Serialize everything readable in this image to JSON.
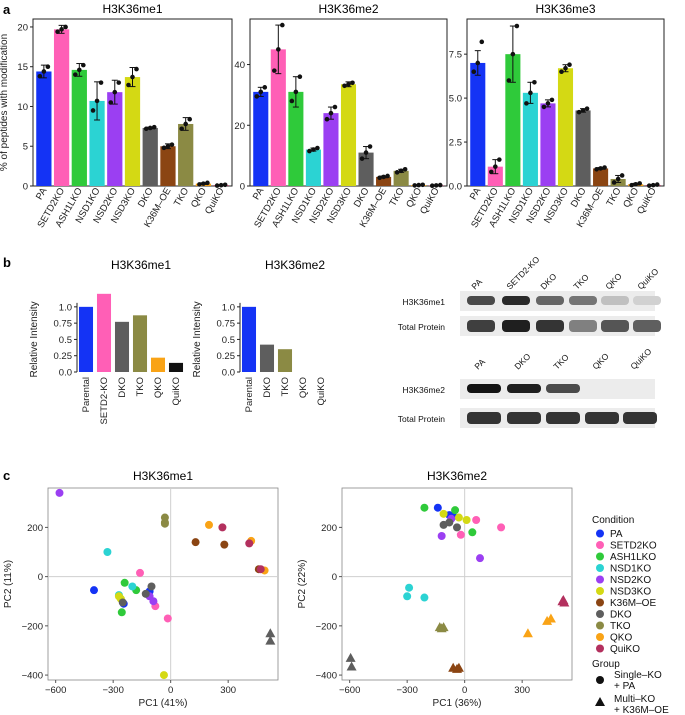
{
  "panel_labels": [
    "a",
    "b",
    "c"
  ],
  "chart_data": [
    {
      "id": "a1",
      "type": "bar",
      "title": "H3K36me1",
      "ylabel": "% of peptides with modification",
      "ylim": [
        0,
        21
      ],
      "yticks": [
        0,
        5,
        10,
        15,
        20
      ],
      "categories": [
        "PA",
        "SETD2KO",
        "ASH1LKO",
        "NSD1KO",
        "NSD2KO",
        "NSD3KO",
        "DKO",
        "K36M–OE",
        "TKO",
        "QKO",
        "QuiKO"
      ],
      "values": [
        14.4,
        19.7,
        14.6,
        10.7,
        11.8,
        13.7,
        7.3,
        5.0,
        7.8,
        0.3,
        0.1
      ],
      "errors": [
        0.8,
        0.5,
        0.8,
        2.4,
        1.5,
        1.2,
        0.1,
        0.3,
        0.8,
        0.1,
        0.05
      ],
      "points": [
        [
          13.8,
          14.4,
          15.0
        ],
        [
          19.4,
          19.7,
          20.0
        ],
        [
          14.0,
          14.6,
          15.2
        ],
        [
          9.5,
          10.7,
          13.0
        ],
        [
          10.5,
          11.8,
          13.0
        ],
        [
          12.7,
          13.7,
          14.7
        ],
        [
          7.2,
          7.3,
          7.4
        ],
        [
          4.8,
          5.0,
          5.2
        ],
        [
          7.2,
          7.8,
          8.4
        ],
        [
          0.2,
          0.3,
          0.4
        ],
        [
          0.05,
          0.1,
          0.15
        ]
      ]
    },
    {
      "id": "a2",
      "type": "bar",
      "title": "H3K36me2",
      "ylabel": "",
      "ylim": [
        0,
        55
      ],
      "yticks": [
        0,
        20,
        40
      ],
      "categories": [
        "PA",
        "SETD2KO",
        "ASH1LKO",
        "NSD1KO",
        "NSD2KO",
        "NSD3KO",
        "DKO",
        "K36M–OE",
        "TKO",
        "QKO",
        "QuiKO"
      ],
      "values": [
        31,
        45,
        31,
        12,
        24,
        33.5,
        11,
        3,
        5,
        0.3,
        0.2
      ],
      "errors": [
        1.5,
        8,
        5,
        0.5,
        2,
        0.8,
        2,
        0.3,
        0.5,
        0.1,
        0.1
      ],
      "points": [
        [
          29.5,
          31,
          32.5
        ],
        [
          38,
          45,
          53
        ],
        [
          28,
          31,
          36
        ],
        [
          11.5,
          12,
          12.5
        ],
        [
          22,
          24,
          26
        ],
        [
          33,
          33.5,
          34
        ],
        [
          9,
          11,
          13
        ],
        [
          2.7,
          3,
          3.3
        ],
        [
          4.5,
          5,
          5.5
        ],
        [
          0.2,
          0.3,
          0.4
        ],
        [
          0.1,
          0.2,
          0.3
        ]
      ]
    },
    {
      "id": "a3",
      "type": "bar",
      "title": "H3K36me3",
      "ylabel": "",
      "ylim": [
        0,
        9.5
      ],
      "yticks": [
        0.0,
        2.5,
        5.0,
        7.5
      ],
      "ytick_labels": [
        "0.0",
        "2.5",
        "5.0",
        "7.5"
      ],
      "categories": [
        "PA",
        "SETD2KO",
        "ASH1LKO",
        "NSD1KO",
        "NSD2KO",
        "NSD3KO",
        "DKO",
        "K36M–OE",
        "TKO",
        "QKO",
        "QuiKO"
      ],
      "values": [
        7.0,
        1.1,
        7.5,
        5.3,
        4.7,
        6.7,
        4.3,
        1.0,
        0.4,
        0.1,
        0.05
      ],
      "errors": [
        0.7,
        0.4,
        1.6,
        0.6,
        0.2,
        0.2,
        0.1,
        0.05,
        0.2,
        0.05,
        0.03
      ],
      "points": [
        [
          6.5,
          7.0,
          8.2
        ],
        [
          0.8,
          1.1,
          1.5
        ],
        [
          6.0,
          7.5,
          9.1
        ],
        [
          4.7,
          5.3,
          5.9
        ],
        [
          4.5,
          4.7,
          4.9
        ],
        [
          6.5,
          6.7,
          6.9
        ],
        [
          4.2,
          4.3,
          4.4
        ],
        [
          0.95,
          1.0,
          1.05
        ],
        [
          0.2,
          0.4,
          0.6
        ],
        [
          0.05,
          0.1,
          0.15
        ],
        [
          0.02,
          0.05,
          0.08
        ]
      ]
    },
    {
      "id": "b1",
      "type": "bar",
      "title": "H3K36me1",
      "ylabel": "Relative Intensity",
      "ylim": [
        0,
        1.32
      ],
      "yticks": [
        0.0,
        0.25,
        0.5,
        0.75,
        1.0
      ],
      "ytick_labels": [
        "0.0",
        "0.25",
        "0.5",
        "0.75",
        "1.0"
      ],
      "categories": [
        "Parental",
        "SETD2-KO",
        "DKO",
        "TKO",
        "QKO",
        "QuiKO"
      ],
      "values": [
        1.0,
        1.2,
        0.77,
        0.87,
        0.22,
        0.14
      ]
    },
    {
      "id": "b2",
      "type": "bar",
      "title": "H3K36me2",
      "ylabel": "Relative Intensity",
      "ylim": [
        0,
        1.32
      ],
      "yticks": [
        0.0,
        0.25,
        0.5,
        0.75,
        1.0
      ],
      "ytick_labels": [
        "0.0",
        "0.25",
        "0.5",
        "0.75",
        "1.0"
      ],
      "categories": [
        "Parental",
        "DKO",
        "TKO",
        "QKO",
        "QuiKO"
      ],
      "values": [
        1.0,
        0.42,
        0.35,
        0.0,
        0.0
      ]
    },
    {
      "id": "c1",
      "type": "scatter",
      "title": "H3K36me1",
      "xlabel": "PC1 (41%)",
      "ylabel": "PC2 (11%)",
      "xlim": [
        -640,
        560
      ],
      "ylim": [
        -420,
        360
      ],
      "xticks": [
        -600,
        -300,
        0,
        300
      ],
      "yticks": [
        -400,
        -200,
        0,
        200
      ],
      "points": [
        {
          "c": "PA",
          "x": -400,
          "y": -55
        },
        {
          "c": "PA",
          "x": -245,
          "y": -110
        },
        {
          "c": "PA",
          "x": -110,
          "y": -60
        },
        {
          "c": "SETD2KO",
          "x": -160,
          "y": 15
        },
        {
          "c": "SETD2KO",
          "x": -15,
          "y": -170
        },
        {
          "c": "SETD2KO",
          "x": -80,
          "y": -120
        },
        {
          "c": "ASH1LKO",
          "x": -255,
          "y": -145
        },
        {
          "c": "ASH1LKO",
          "x": -240,
          "y": -25
        },
        {
          "c": "ASH1LKO",
          "x": -180,
          "y": -55
        },
        {
          "c": "NSD1KO",
          "x": -330,
          "y": 100
        },
        {
          "c": "NSD1KO",
          "x": -270,
          "y": -75
        },
        {
          "c": "NSD1KO",
          "x": -200,
          "y": -40
        },
        {
          "c": "NSD2KO",
          "x": -580,
          "y": 340
        },
        {
          "c": "NSD2KO",
          "x": -110,
          "y": -80
        },
        {
          "c": "NSD2KO",
          "x": -90,
          "y": -100
        },
        {
          "c": "NSD3KO",
          "x": -270,
          "y": -80
        },
        {
          "c": "NSD3KO",
          "x": -260,
          "y": -90
        },
        {
          "c": "NSD3KO",
          "x": -35,
          "y": -400
        },
        {
          "c": "DKO",
          "x": -250,
          "y": -105
        },
        {
          "c": "DKO",
          "x": -130,
          "y": -70
        },
        {
          "c": "DKO",
          "x": -100,
          "y": -40
        },
        {
          "c": "K36M–OE",
          "x": 130,
          "y": 140
        },
        {
          "c": "K36M–OE",
          "x": 280,
          "y": 130
        },
        {
          "c": "K36M–OE",
          "x": 460,
          "y": 30
        },
        {
          "c": "TKO",
          "x": -30,
          "y": 240
        },
        {
          "c": "TKO",
          "x": -30,
          "y": 220
        },
        {
          "c": "TKO",
          "x": -30,
          "y": 215
        },
        {
          "c": "QKO",
          "x": 200,
          "y": 210
        },
        {
          "c": "QKO",
          "x": 420,
          "y": 145
        },
        {
          "c": "QKO",
          "x": 490,
          "y": 25
        },
        {
          "c": "QuiKO",
          "x": 270,
          "y": 200
        },
        {
          "c": "QuiKO",
          "x": 410,
          "y": 135
        },
        {
          "c": "QuiKO",
          "x": 470,
          "y": 30
        },
        {
          "c": "DKO",
          "x": 520,
          "y": -230,
          "s": "tri"
        },
        {
          "c": "DKO",
          "x": 520,
          "y": -260,
          "s": "tri"
        }
      ]
    },
    {
      "id": "c2",
      "type": "scatter",
      "title": "H3K36me2",
      "xlabel": "PC1 (36%)",
      "ylabel": "PC2 (22%)",
      "xlim": [
        -640,
        560
      ],
      "ylim": [
        -420,
        360
      ],
      "xticks": [
        -600,
        -300,
        0,
        300
      ],
      "yticks": [
        -400,
        -200,
        0,
        200
      ],
      "points": [
        {
          "c": "PA",
          "x": -140,
          "y": 280
        },
        {
          "c": "PA",
          "x": -60,
          "y": 245
        },
        {
          "c": "PA",
          "x": -80,
          "y": 250
        },
        {
          "c": "SETD2KO",
          "x": -20,
          "y": 170
        },
        {
          "c": "SETD2KO",
          "x": 60,
          "y": 230
        },
        {
          "c": "SETD2KO",
          "x": 190,
          "y": 200
        },
        {
          "c": "ASH1LKO",
          "x": -210,
          "y": 280
        },
        {
          "c": "ASH1LKO",
          "x": -50,
          "y": 270
        },
        {
          "c": "ASH1LKO",
          "x": 40,
          "y": 180
        },
        {
          "c": "NSD1KO",
          "x": -290,
          "y": -45
        },
        {
          "c": "NSD1KO",
          "x": -300,
          "y": -80
        },
        {
          "c": "NSD1KO",
          "x": -210,
          "y": -85
        },
        {
          "c": "NSD2KO",
          "x": -120,
          "y": 165
        },
        {
          "c": "NSD2KO",
          "x": -70,
          "y": 235
        },
        {
          "c": "NSD2KO",
          "x": 80,
          "y": 75
        },
        {
          "c": "NSD3KO",
          "x": -110,
          "y": 255
        },
        {
          "c": "NSD3KO",
          "x": -30,
          "y": 240
        },
        {
          "c": "NSD3KO",
          "x": 10,
          "y": 230
        },
        {
          "c": "DKO",
          "x": -110,
          "y": 210
        },
        {
          "c": "DKO",
          "x": -40,
          "y": 200
        },
        {
          "c": "DKO",
          "x": -80,
          "y": 220
        },
        {
          "c": "K36M–OE",
          "x": -60,
          "y": -370,
          "s": "tri"
        },
        {
          "c": "K36M–OE",
          "x": -40,
          "y": -375,
          "s": "tri"
        },
        {
          "c": "K36M–OE",
          "x": -30,
          "y": -370,
          "s": "tri"
        },
        {
          "c": "TKO",
          "x": -130,
          "y": -205,
          "s": "tri"
        },
        {
          "c": "TKO",
          "x": -110,
          "y": -205,
          "s": "tri"
        },
        {
          "c": "TKO",
          "x": -120,
          "y": -210,
          "s": "tri"
        },
        {
          "c": "QKO",
          "x": 330,
          "y": -230,
          "s": "tri"
        },
        {
          "c": "QKO",
          "x": 430,
          "y": -180,
          "s": "tri"
        },
        {
          "c": "QKO",
          "x": 450,
          "y": -170,
          "s": "tri"
        },
        {
          "c": "QuiKO",
          "x": 510,
          "y": -100,
          "s": "tri"
        },
        {
          "c": "QuiKO",
          "x": 520,
          "y": -105,
          "s": "tri"
        },
        {
          "c": "QuiKO",
          "x": 515,
          "y": -95,
          "s": "tri"
        },
        {
          "c": "DKO",
          "x": -595,
          "y": -330,
          "s": "tri"
        },
        {
          "c": "DKO",
          "x": -590,
          "y": -365,
          "s": "tri"
        }
      ]
    }
  ],
  "colors": {
    "PA": "#1433f5",
    "SETD2KO": "#ff5fb6",
    "ASH1LKO": "#2fca3a",
    "NSD1KO": "#2bd3d3",
    "NSD2KO": "#9b3ff2",
    "NSD3KO": "#d4d914",
    "DKO": "#5e5e5e",
    "K36M–OE": "#8b4513",
    "TKO": "#8b8a44",
    "QKO": "#f9a316",
    "QuiKO": "#b3305e",
    "Black": "#111111",
    "Parental": "#1433f5",
    "SETD2-KO": "#ff5fb6"
  },
  "blots": {
    "top": {
      "lanes": [
        "PA",
        "SETD2-KO",
        "DKO",
        "TKO",
        "QKO",
        "QuiKO"
      ],
      "rows": [
        "H3K36me1",
        "Total Protein"
      ],
      "intensity_me1": [
        0.75,
        0.9,
        0.62,
        0.55,
        0.2,
        0.12
      ],
      "intensity_total": [
        0.8,
        0.95,
        0.85,
        0.5,
        0.7,
        0.65
      ]
    },
    "bottom": {
      "lanes": [
        "PA",
        "DKO",
        "TKO",
        "QKO",
        "QuiKO"
      ],
      "rows": [
        "H3K36me2",
        "Total Protein"
      ],
      "intensity_me2": [
        1.0,
        0.95,
        0.75,
        0.0,
        0.0
      ],
      "intensity_total": [
        0.85,
        0.85,
        0.85,
        0.85,
        0.85
      ]
    }
  },
  "legend": {
    "condition_title": "Condition",
    "conditions": [
      "PA",
      "SETD2KO",
      "ASH1LKO",
      "NSD1KO",
      "NSD2KO",
      "NSD3KO",
      "K36M–OE",
      "DKO",
      "TKO",
      "QKO",
      "QuiKO"
    ],
    "group_title": "Group",
    "groups": [
      {
        "shape": "circle",
        "line1": "Single–KO",
        "line2": "+ PA"
      },
      {
        "shape": "triangle",
        "line1": "Multi–KO",
        "line2": "+ K36M–OE"
      }
    ]
  }
}
